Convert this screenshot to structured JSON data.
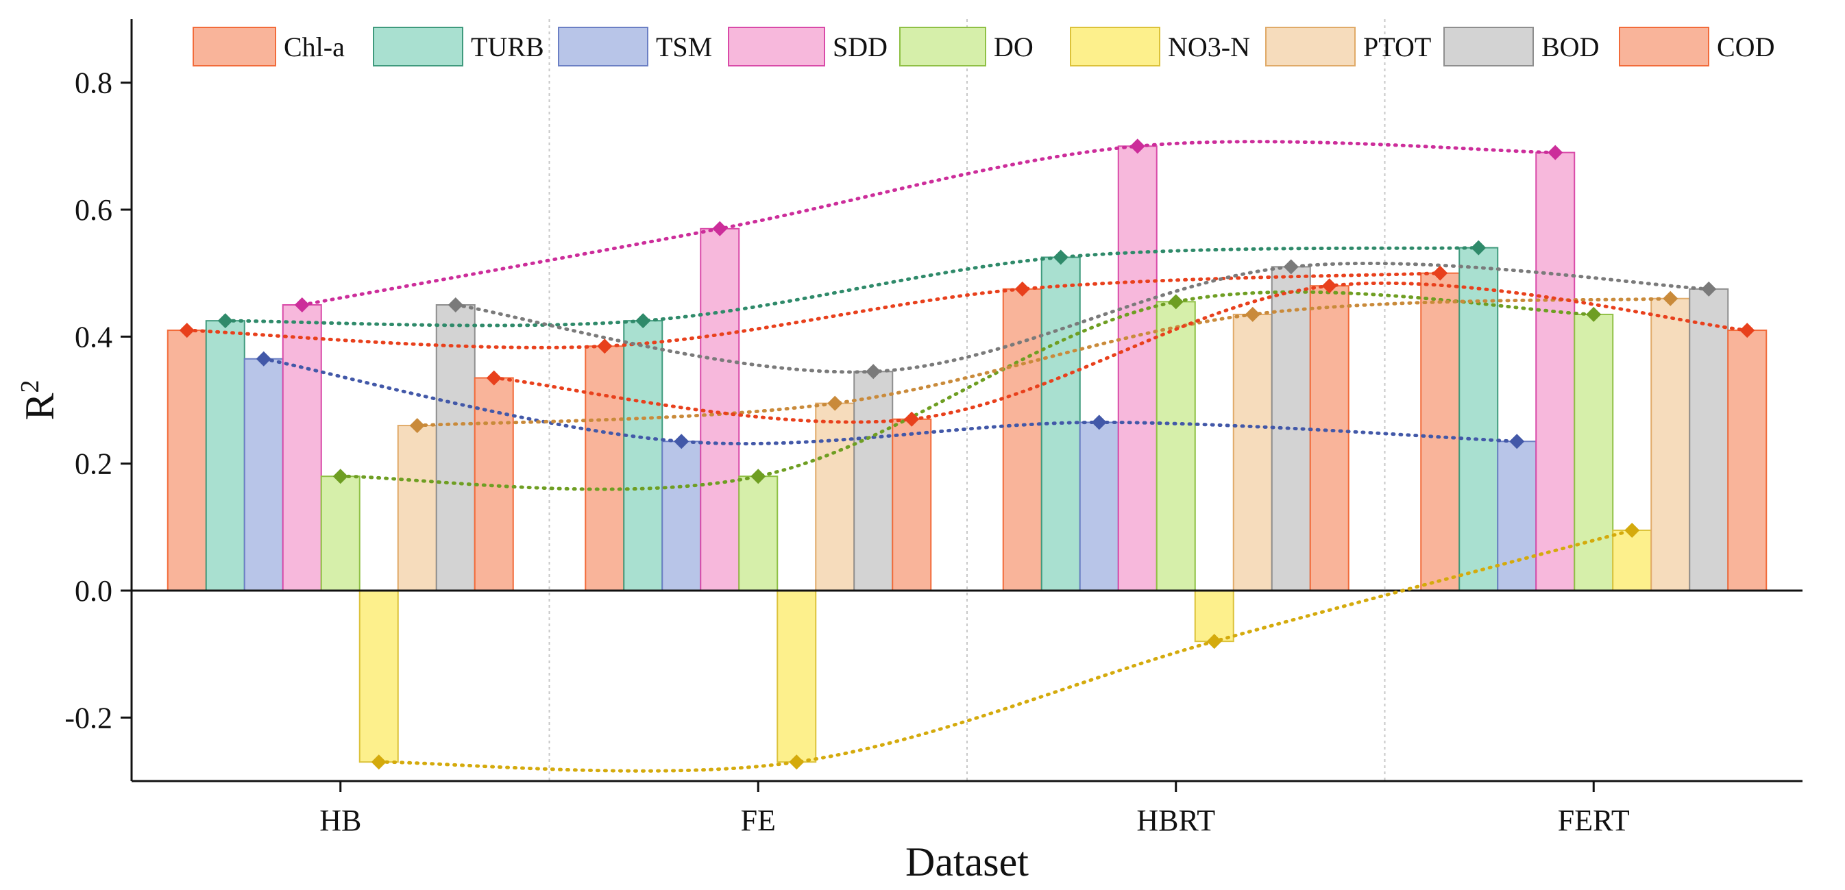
{
  "chart_data": {
    "type": "bar",
    "title": "",
    "xlabel": "Dataset",
    "ylabel": "R",
    "ylabel_superscript": "2",
    "ylim": [
      -0.3,
      0.9
    ],
    "yticks": [
      -0.2,
      0.0,
      0.2,
      0.4,
      0.6,
      0.8
    ],
    "ytick_labels": [
      "-0.2",
      "0.0",
      "0.2",
      "0.4",
      "0.6",
      "0.8"
    ],
    "categories": [
      "HB",
      "FE",
      "HBRT",
      "FERT"
    ],
    "legend_position": "top",
    "grid": "vertical dotted separators between categories",
    "series": [
      {
        "name": "Chl-a",
        "values": [
          0.41,
          0.385,
          0.475,
          0.5
        ],
        "fill": "#f9b49a",
        "edge": "#f26b3a",
        "marker": "#e8401c"
      },
      {
        "name": "TURB",
        "values": [
          0.425,
          0.425,
          0.525,
          0.54
        ],
        "fill": "#a9e0d0",
        "edge": "#3f9a7d",
        "marker": "#2f8a6a"
      },
      {
        "name": "TSM",
        "values": [
          0.365,
          0.235,
          0.265,
          0.235
        ],
        "fill": "#b8c5e8",
        "edge": "#6b7fc4",
        "marker": "#4258a8"
      },
      {
        "name": "SDD",
        "values": [
          0.45,
          0.57,
          0.7,
          0.69
        ],
        "fill": "#f7b8dc",
        "edge": "#d94aa8",
        "marker": "#cc2d9a"
      },
      {
        "name": "DO",
        "values": [
          0.18,
          0.18,
          0.455,
          0.435
        ],
        "fill": "#d6efaa",
        "edge": "#8fc045",
        "marker": "#6e9e22"
      },
      {
        "name": "NO3-N",
        "values": [
          -0.27,
          -0.27,
          -0.08,
          0.095
        ],
        "fill": "#fdf08c",
        "edge": "#dcc23a",
        "marker": "#d4aa0c"
      },
      {
        "name": "PTOT",
        "values": [
          0.26,
          0.295,
          0.435,
          0.46
        ],
        "fill": "#f6dcbc",
        "edge": "#e0aa68",
        "marker": "#c98a3a"
      },
      {
        "name": "BOD",
        "values": [
          0.45,
          0.345,
          0.51,
          0.475
        ],
        "fill": "#d3d3d3",
        "edge": "#8e8e8e",
        "marker": "#7a7a7a"
      },
      {
        "name": "COD",
        "values": [
          0.335,
          0.27,
          0.48,
          0.41
        ],
        "fill": "#f9b49a",
        "edge": "#f26b3a",
        "marker": "#e8401c"
      }
    ]
  }
}
